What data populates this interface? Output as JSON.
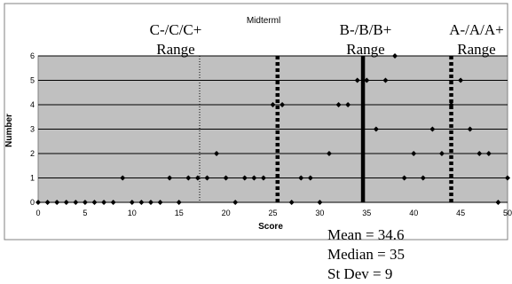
{
  "chart_data": {
    "type": "scatter",
    "title": "Midterml",
    "xlabel": "Score",
    "ylabel": "Number",
    "xlim": [
      0,
      50
    ],
    "ylim": [
      0,
      6
    ],
    "x_ticks": [
      "0",
      "5",
      "10",
      "15",
      "20",
      "25",
      "30",
      "35",
      "40",
      "45",
      "50"
    ],
    "y_ticks": [
      "0",
      "1",
      "2",
      "3",
      "4",
      "5",
      "6"
    ],
    "grid": "horizontal",
    "points": [
      {
        "x": 0,
        "y": 0
      },
      {
        "x": 1,
        "y": 0
      },
      {
        "x": 2,
        "y": 0
      },
      {
        "x": 3,
        "y": 0
      },
      {
        "x": 4,
        "y": 0
      },
      {
        "x": 5,
        "y": 0
      },
      {
        "x": 6,
        "y": 0
      },
      {
        "x": 7,
        "y": 0
      },
      {
        "x": 8,
        "y": 0
      },
      {
        "x": 9,
        "y": 1
      },
      {
        "x": 10,
        "y": 0
      },
      {
        "x": 11,
        "y": 0
      },
      {
        "x": 12,
        "y": 0
      },
      {
        "x": 13,
        "y": 0
      },
      {
        "x": 14,
        "y": 1
      },
      {
        "x": 15,
        "y": 0
      },
      {
        "x": 16,
        "y": 1
      },
      {
        "x": 17,
        "y": 1
      },
      {
        "x": 18,
        "y": 1
      },
      {
        "x": 19,
        "y": 2
      },
      {
        "x": 20,
        "y": 1
      },
      {
        "x": 21,
        "y": 0
      },
      {
        "x": 22,
        "y": 1
      },
      {
        "x": 23,
        "y": 1
      },
      {
        "x": 24,
        "y": 1
      },
      {
        "x": 25,
        "y": 4
      },
      {
        "x": 26,
        "y": 4
      },
      {
        "x": 27,
        "y": 0
      },
      {
        "x": 28,
        "y": 1
      },
      {
        "x": 29,
        "y": 1
      },
      {
        "x": 30,
        "y": 0
      },
      {
        "x": 31,
        "y": 2
      },
      {
        "x": 32,
        "y": 4
      },
      {
        "x": 33,
        "y": 4
      },
      {
        "x": 34,
        "y": 5
      },
      {
        "x": 35,
        "y": 5
      },
      {
        "x": 36,
        "y": 3
      },
      {
        "x": 37,
        "y": 5
      },
      {
        "x": 38,
        "y": 6
      },
      {
        "x": 39,
        "y": 1
      },
      {
        "x": 40,
        "y": 2
      },
      {
        "x": 41,
        "y": 1
      },
      {
        "x": 42,
        "y": 3
      },
      {
        "x": 43,
        "y": 2
      },
      {
        "x": 44,
        "y": 4
      },
      {
        "x": 45,
        "y": 5
      },
      {
        "x": 46,
        "y": 3
      },
      {
        "x": 47,
        "y": 2
      },
      {
        "x": 48,
        "y": 2
      },
      {
        "x": 49,
        "y": 0
      },
      {
        "x": 50,
        "y": 1
      }
    ],
    "reference_lines": [
      {
        "x": 17.2,
        "style": "dotted-thin"
      },
      {
        "x": 25.5,
        "style": "dashed-thick"
      },
      {
        "x": 34.6,
        "style": "solid-thick"
      },
      {
        "x": 44,
        "style": "dashed-thick"
      }
    ],
    "annotations": [
      {
        "lines": [
          "C-/C/C+",
          "Range"
        ]
      },
      {
        "lines": [
          "B-/B/B+",
          "Range"
        ]
      },
      {
        "lines": [
          "A-/A/A+",
          "Range"
        ]
      }
    ],
    "stats": [
      "Mean = 34.6",
      "Median = 35",
      "St Dev = 9"
    ],
    "colors": {
      "plot_background": "#c0c0c0",
      "gridline": "#000000",
      "marker": "#000000",
      "frame": "#808080"
    }
  }
}
